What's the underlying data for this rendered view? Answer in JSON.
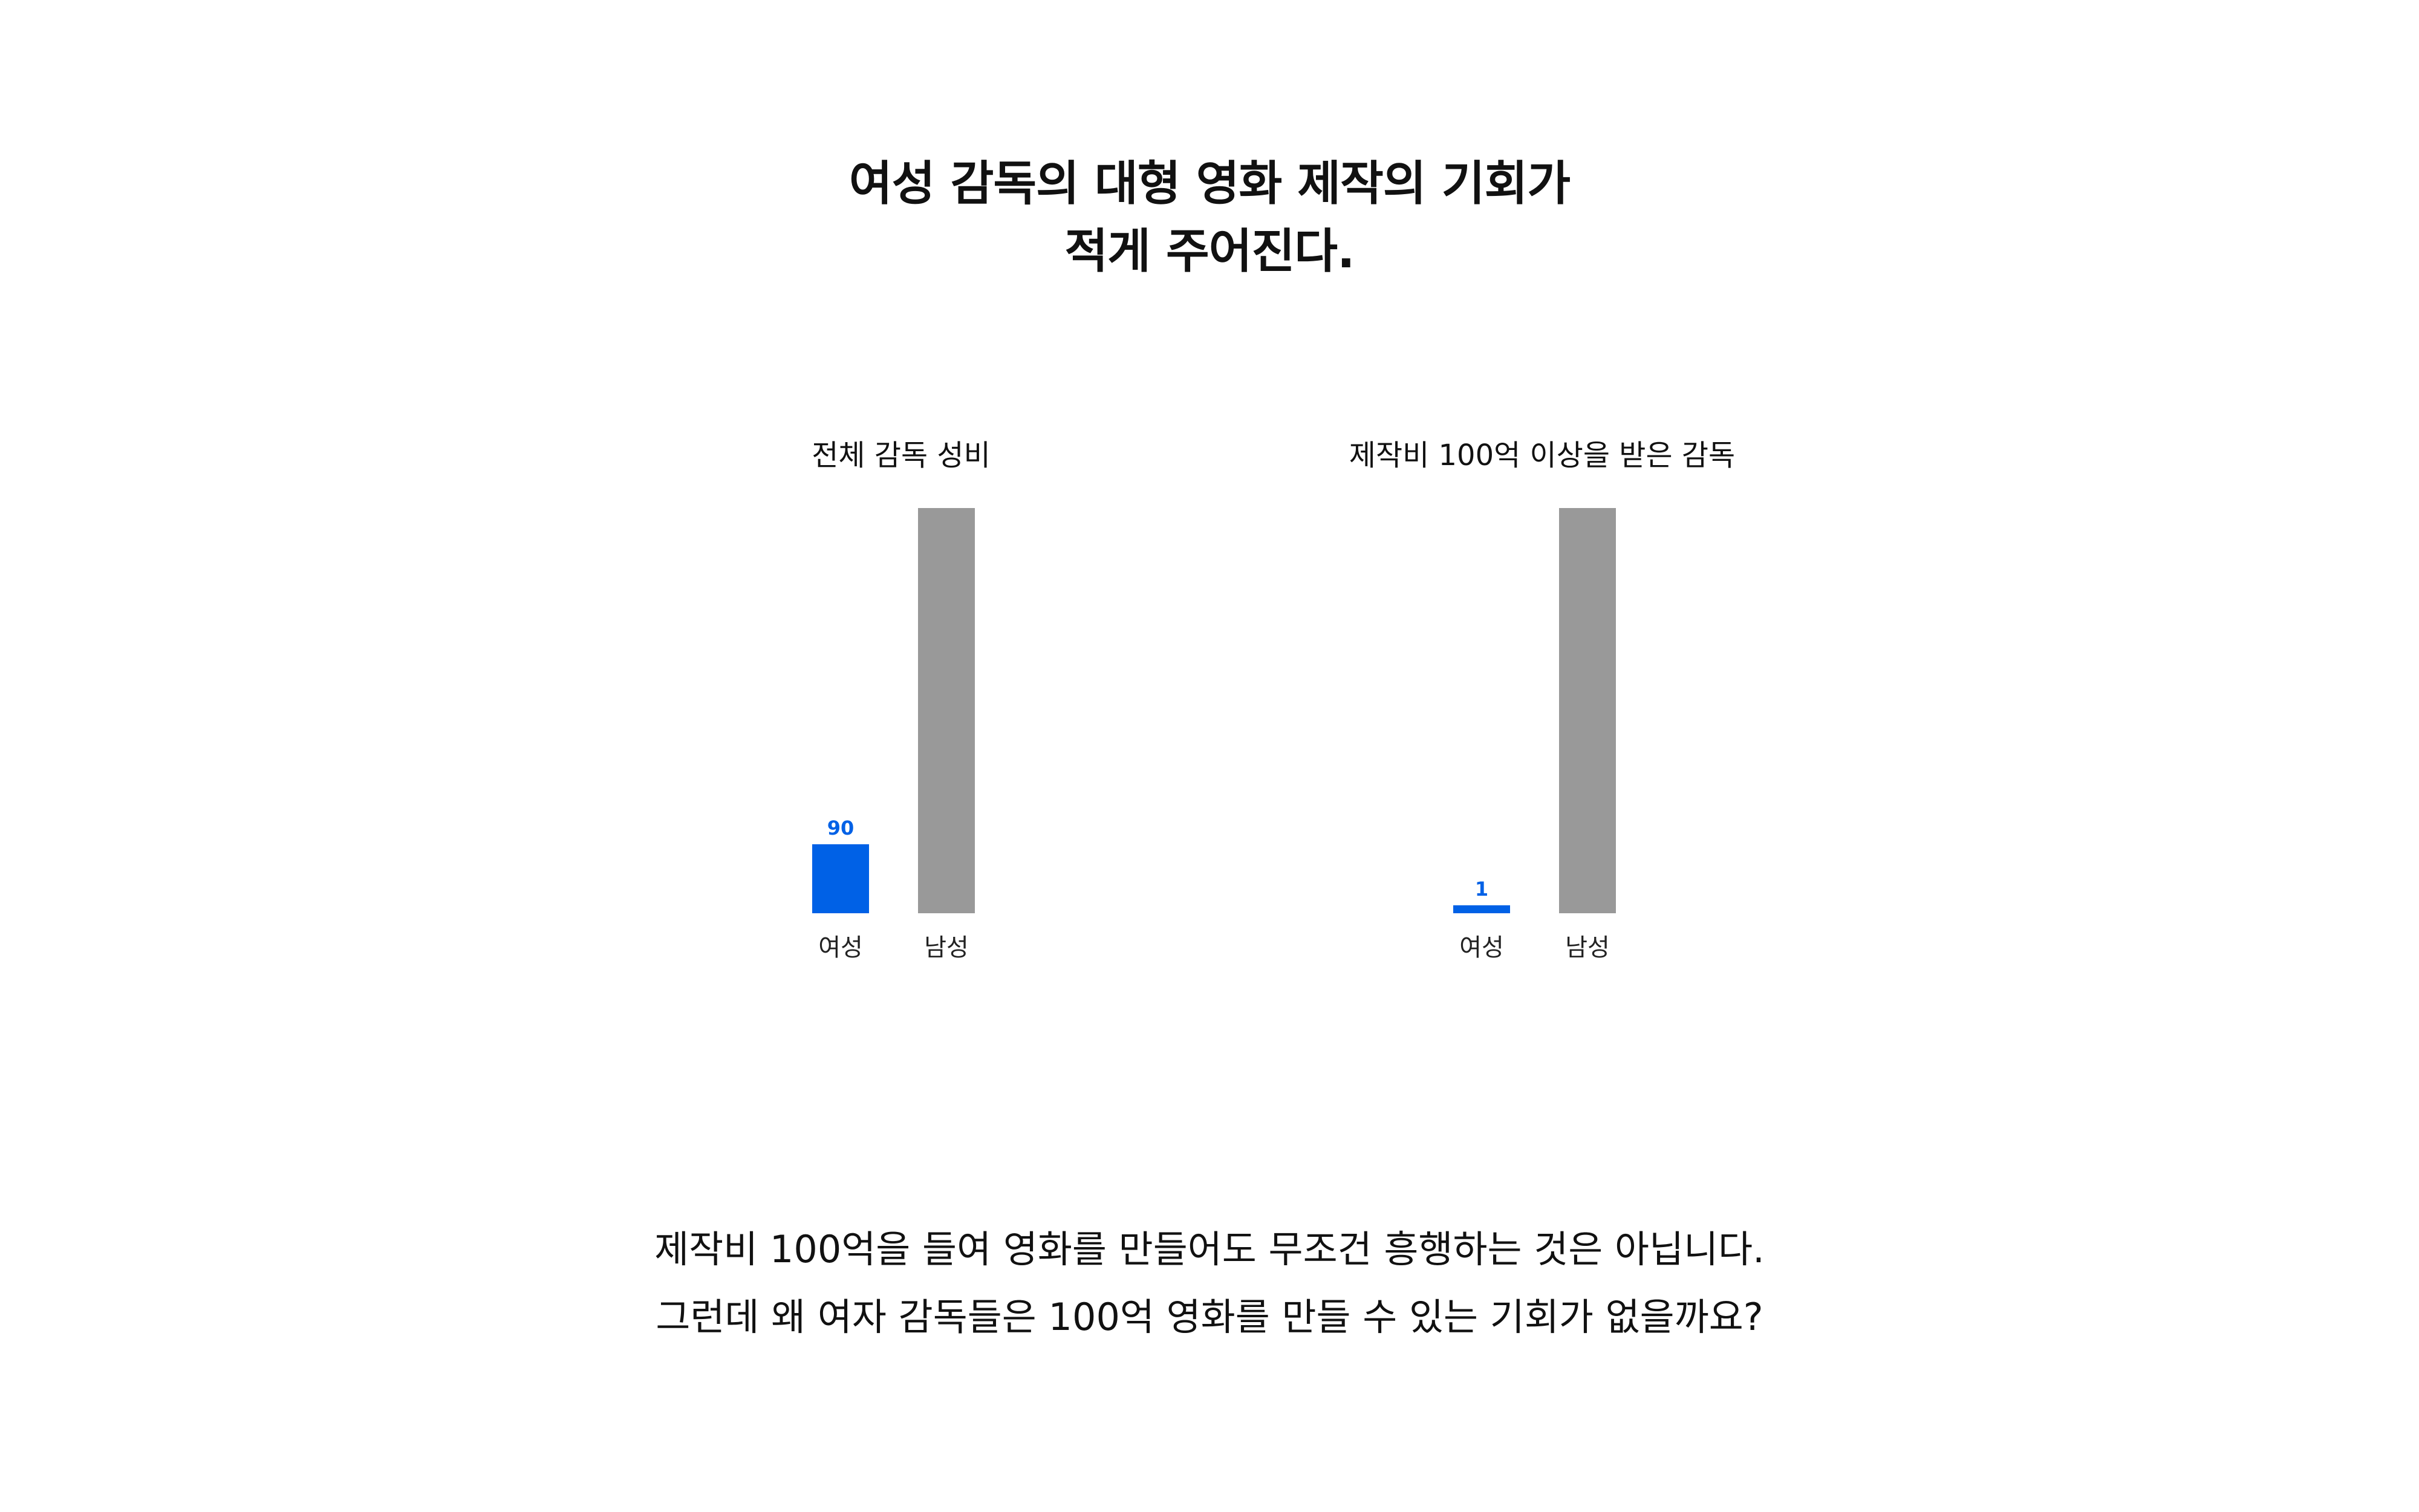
{
  "headline": {
    "line1": "여성 감독의 대형 영화 제작의 기회가",
    "line2": "적게 주어진다."
  },
  "colors": {
    "female": "#0061e6",
    "male": "#999999",
    "male_label": "#8c8c8c"
  },
  "chart_data": [
    {
      "type": "bar",
      "title": "전체 감독 성비",
      "categories": [
        "여성",
        "남성"
      ],
      "values": [
        90,
        572
      ],
      "ylim": [
        0,
        572
      ],
      "grid": false,
      "legend": "none"
    },
    {
      "type": "bar",
      "title": "제작비 100억 이상을 받은 감독",
      "categories": [
        "여성",
        "남성"
      ],
      "values": [
        1,
        55
      ],
      "ylim": [
        0,
        55
      ],
      "grid": false,
      "legend": "none"
    }
  ],
  "footer": {
    "line1": "제작비 100억을 들여 영화를 만들어도 무조건 흥행하는 것은 아닙니다.",
    "line2": "그런데 왜 여자 감독들은 100억 영화를 만들 수 있는 기회가 없을까요?"
  }
}
